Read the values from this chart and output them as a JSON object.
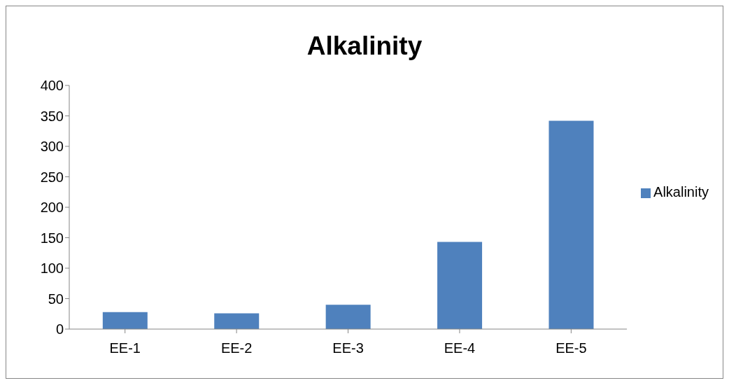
{
  "chart_data": {
    "type": "bar",
    "title": "Alkalinity",
    "categories": [
      "EE-1",
      "EE-2",
      "EE-3",
      "EE-4",
      "EE-5"
    ],
    "series": [
      {
        "name": "Alkalinity",
        "color": "#4f81bd",
        "values": [
          28,
          26,
          40,
          143,
          342
        ]
      }
    ],
    "ylim": [
      0,
      400
    ],
    "yticks": [
      0,
      50,
      100,
      150,
      200,
      250,
      300,
      350,
      400
    ],
    "grid": false,
    "legend": "right"
  }
}
